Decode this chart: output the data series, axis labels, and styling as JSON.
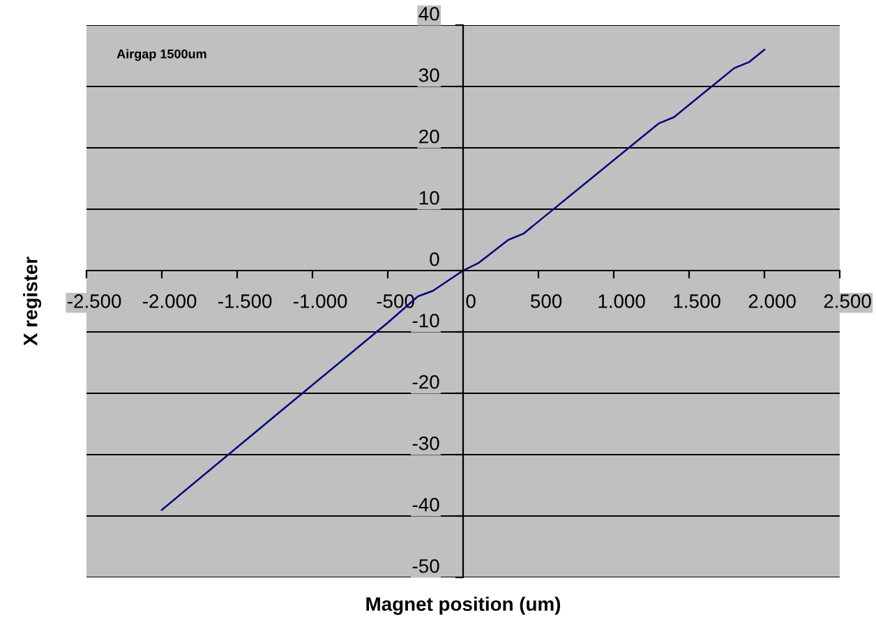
{
  "chart_data": {
    "type": "line",
    "xlabel": "Magnet position (um)",
    "ylabel": "X register",
    "annotations": [
      "Airgap 1500um"
    ],
    "x": [
      -2000,
      -1200,
      -500,
      -300,
      -200,
      0,
      100,
      300,
      400,
      1300,
      1400,
      1800,
      1900,
      2000
    ],
    "series": [
      {
        "color": "#000080",
        "values": [
          -39,
          -22.7,
          -8.5,
          -4.2,
          -3.3,
          0,
          1.2,
          5,
          6,
          24,
          25,
          33,
          34,
          36
        ]
      }
    ],
    "xlim": [
      -2500,
      2500
    ],
    "ylim": [
      -50,
      40
    ],
    "xticks": [
      {
        "value": -2500,
        "label": "-2.500"
      },
      {
        "value": -2000,
        "label": "-2.000"
      },
      {
        "value": -1500,
        "label": "-1.500"
      },
      {
        "value": -1000,
        "label": "-1.000"
      },
      {
        "value": -500,
        "label": "-500"
      },
      0,
      500,
      {
        "value": 1000,
        "label": "1.000"
      },
      {
        "value": 1500,
        "label": "1.500"
      },
      {
        "value": 2000,
        "label": "2.000"
      },
      {
        "value": 2500,
        "label": "2.500"
      }
    ],
    "yticks": [
      -50,
      -40,
      -30,
      -20,
      -10,
      0,
      10,
      20,
      30,
      40
    ],
    "grid": "y",
    "marker": "none",
    "line_style": "solid",
    "legend": false
  }
}
